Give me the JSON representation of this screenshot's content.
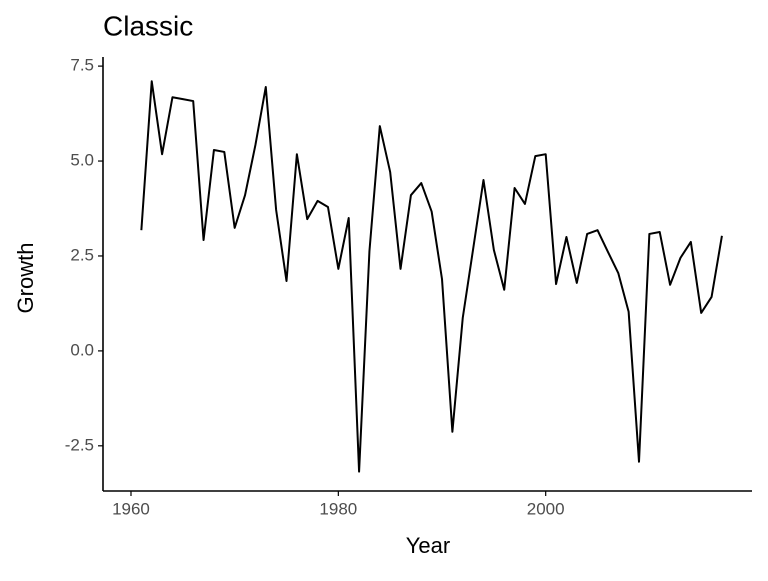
{
  "chart_data": {
    "type": "line",
    "title": "Classic",
    "x_label": "Year",
    "y_label": "Growth",
    "x": [
      1961,
      1962,
      1963,
      1964,
      1965,
      1966,
      1967,
      1968,
      1969,
      1970,
      1971,
      1972,
      1973,
      1974,
      1975,
      1976,
      1977,
      1978,
      1979,
      1980,
      1981,
      1982,
      1983,
      1984,
      1985,
      1986,
      1987,
      1988,
      1989,
      1990,
      1991,
      1992,
      1993,
      1994,
      1995,
      1996,
      1997,
      1998,
      1999,
      2000,
      2001,
      2002,
      2003,
      2004,
      2005,
      2006,
      2007,
      2008,
      2009,
      2010,
      2011,
      2012,
      2013,
      2014,
      2015,
      2016,
      2017
    ],
    "values": [
      3.18,
      7.1,
      5.18,
      6.68,
      6.63,
      6.58,
      2.92,
      5.29,
      5.24,
      3.24,
      4.1,
      5.42,
      6.95,
      3.71,
      1.84,
      5.18,
      3.47,
      3.95,
      3.79,
      2.16,
      3.5,
      -3.18,
      2.63,
      5.92,
      4.71,
      2.16,
      4.1,
      4.42,
      3.67,
      1.89,
      -2.13,
      0.87,
      2.68,
      4.5,
      2.66,
      1.61,
      4.29,
      3.87,
      5.13,
      5.18,
      1.76,
      3.0,
      1.79,
      3.08,
      3.18,
      2.61,
      2.05,
      1.03,
      -2.92,
      3.08,
      3.13,
      1.74,
      2.45,
      2.87,
      1.0,
      1.42,
      3.03
    ],
    "color": "#000000",
    "xlim": [
      1957.3,
      2019.9
    ],
    "xticks": [
      1960,
      1980,
      2000
    ],
    "ylim": [
      -3.69,
      7.74
    ],
    "yticks": [
      7.5,
      {
        "value": 5.0,
        "label": "5.0"
      },
      2.5,
      {
        "value": 0.0,
        "label": "0.0"
      },
      -2.5
    ],
    "grid": false
  }
}
